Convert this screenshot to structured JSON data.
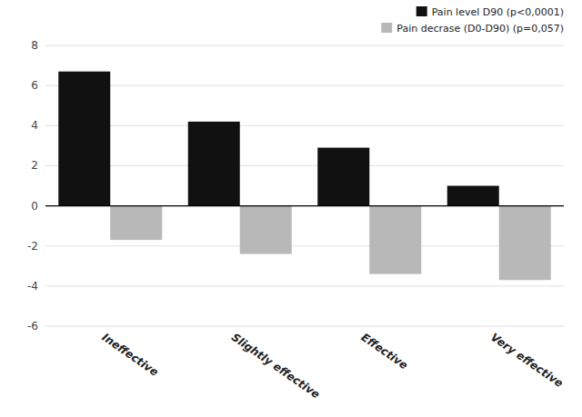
{
  "chart_data": {
    "type": "bar",
    "categories": [
      "Ineffective",
      "Slightly effective",
      "Effective",
      "Very effective"
    ],
    "series": [
      {
        "name": "Pain level D90 (p<0,0001)",
        "color": "#111111",
        "values": [
          6.7,
          4.2,
          2.9,
          1.0
        ]
      },
      {
        "name": "Pain decrase (D0-D90) (p=0,057)",
        "color": "#b8b8b8",
        "values": [
          -1.7,
          -2.4,
          -3.4,
          -3.7
        ]
      }
    ],
    "ylim": [
      -6,
      8
    ],
    "yticks": [
      -6,
      -4,
      -2,
      0,
      2,
      4,
      6,
      8
    ],
    "grid": true,
    "legend": "upper right"
  }
}
